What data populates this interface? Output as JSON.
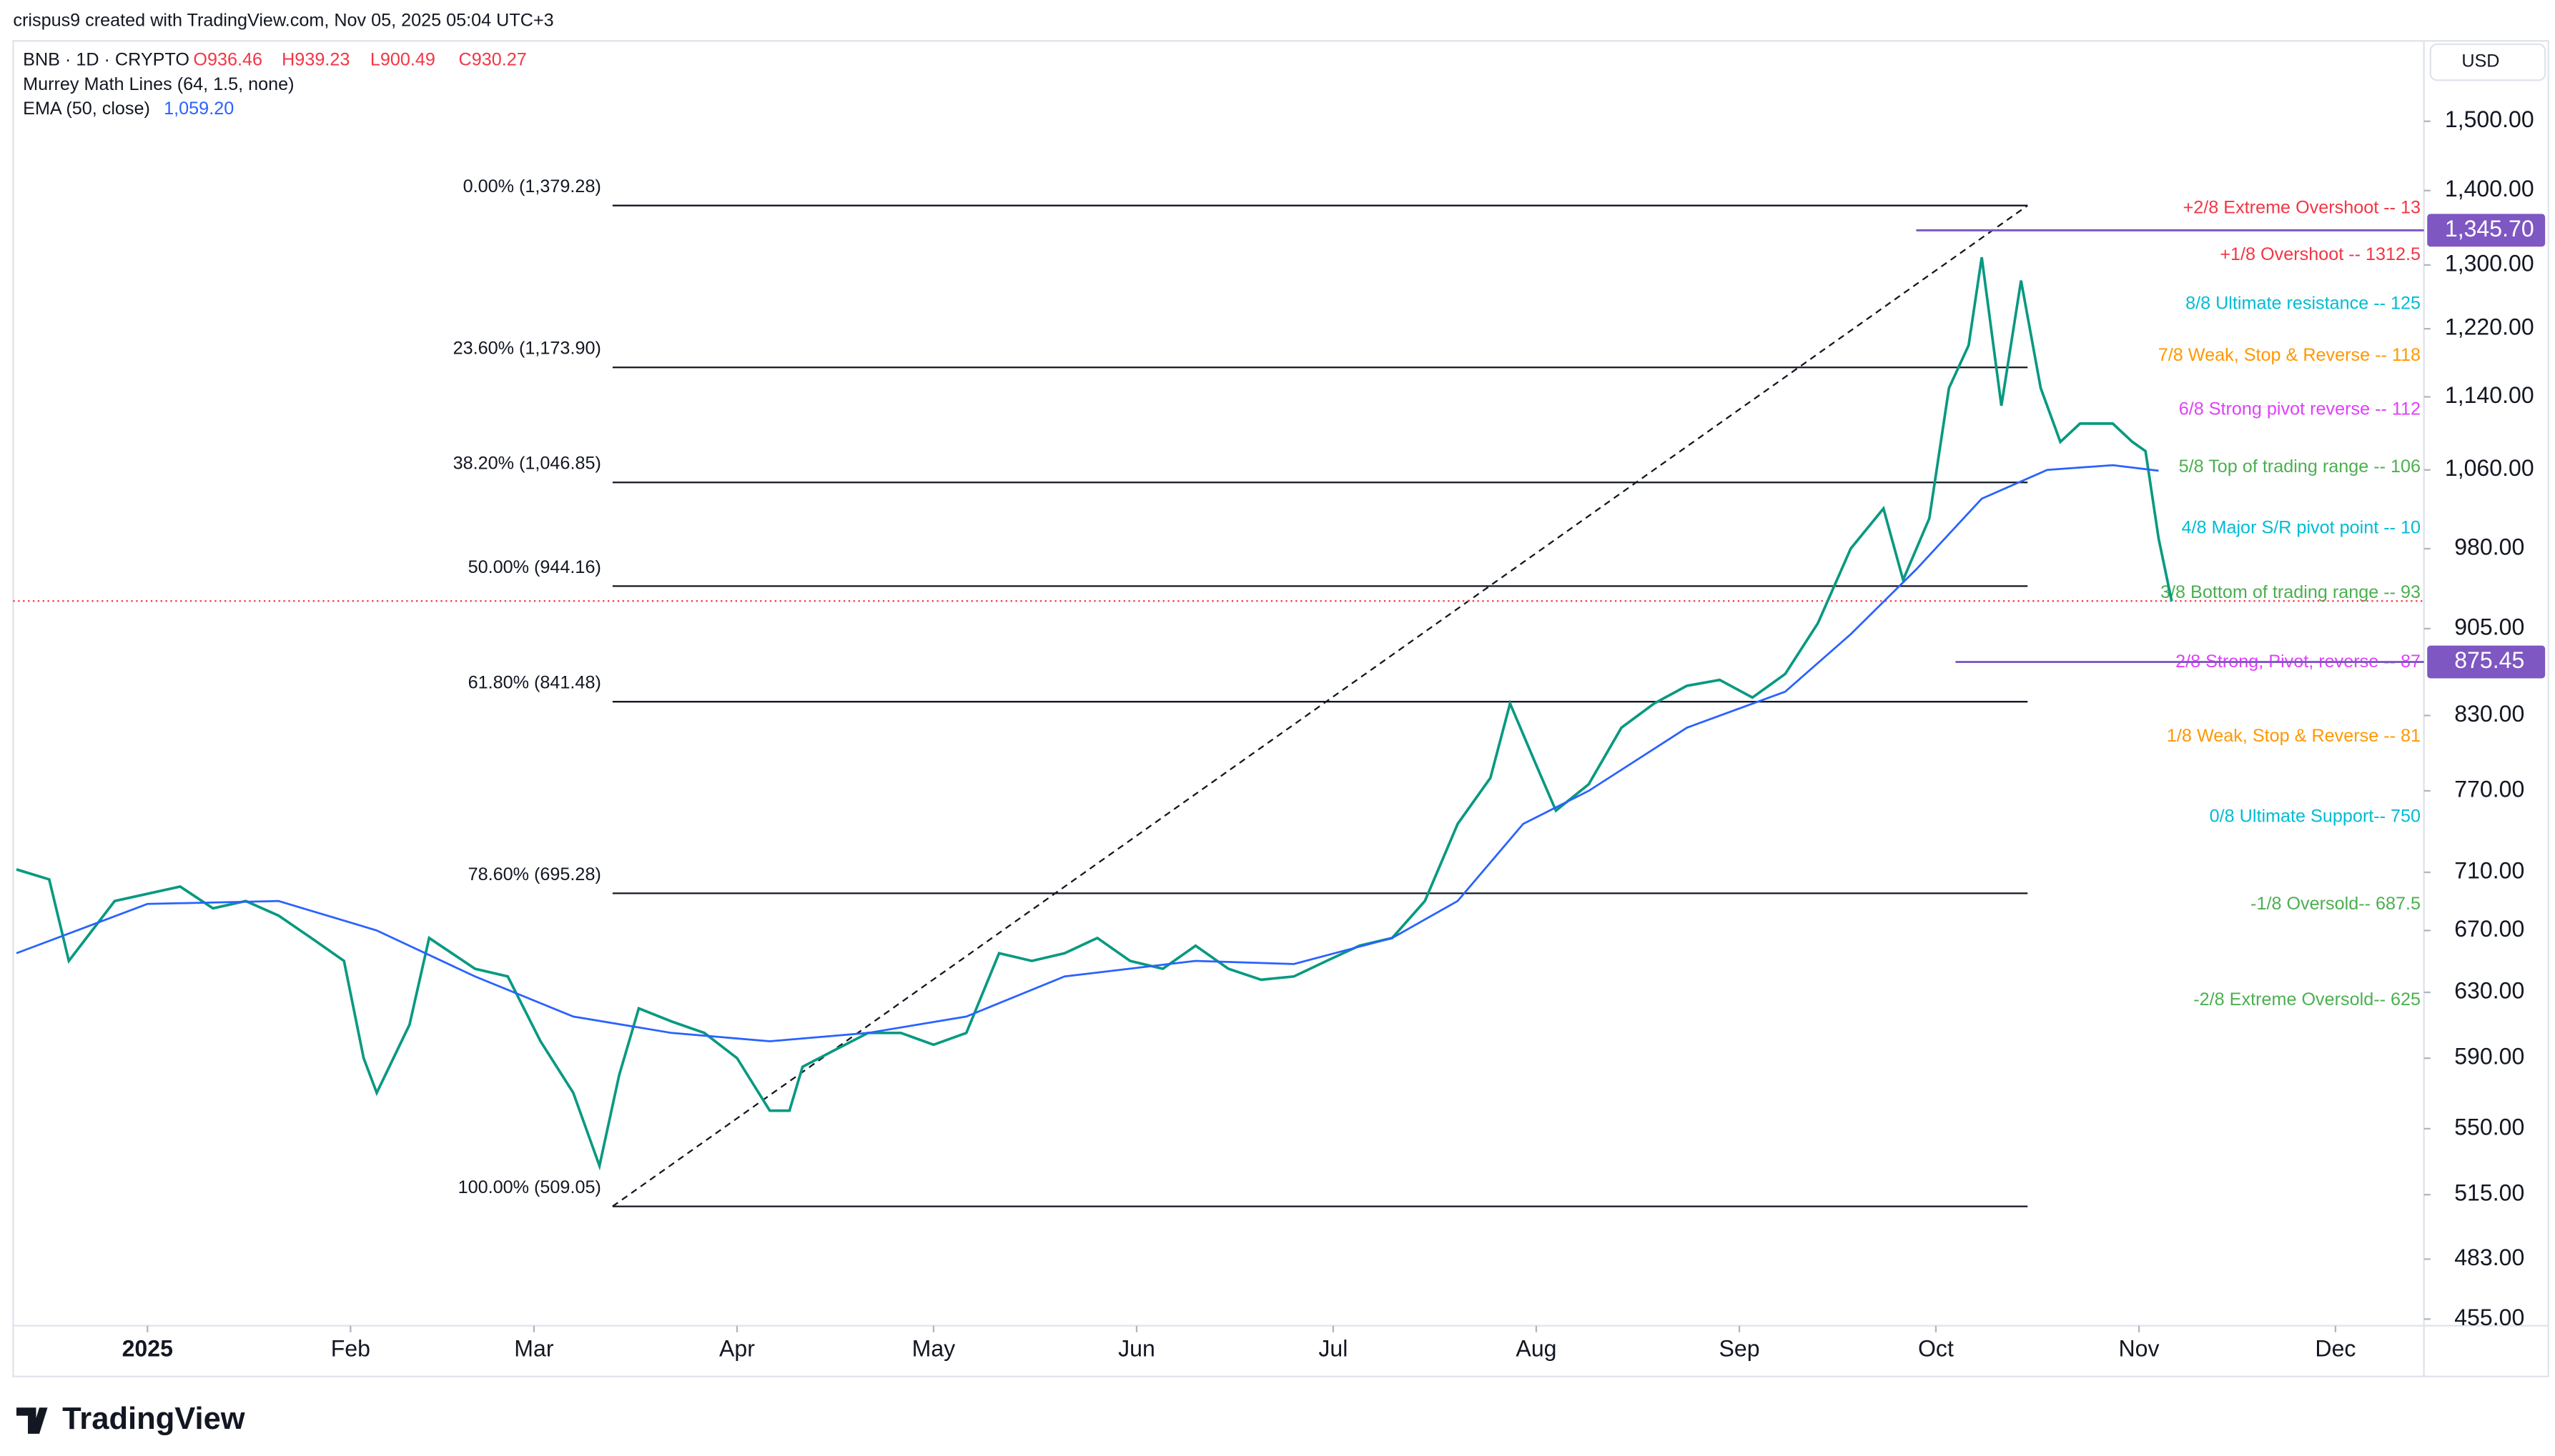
{
  "header": {
    "attribution": "crispus9 created with TradingView.com, Nov 05, 2025 05:04 UTC+3",
    "ohlc": [
      "O936.46",
      "H939.23",
      "L900.49",
      "C930.27"
    ],
    "indicator": "Murrey Math Lines (64, 1.5, none)",
    "ema_value": "1,059.20",
    "currency": "USD"
  },
  "footer": {
    "logo": "TradingView"
  },
  "chart_data": {
    "type": "line",
    "log_scale": true,
    "xlim": [
      -20.5,
      347.5
    ],
    "xticks": [
      {
        "value": 0,
        "label": "2025"
      },
      {
        "value": 31,
        "label": "Feb"
      },
      {
        "value": 59,
        "label": "Mar"
      },
      {
        "value": 90,
        "label": "Apr"
      },
      {
        "value": 120,
        "label": "May"
      },
      {
        "value": 151,
        "label": "Jun"
      },
      {
        "value": 181,
        "label": "Jul"
      },
      {
        "value": 212,
        "label": "Aug"
      },
      {
        "value": 243,
        "label": "Sep"
      },
      {
        "value": 273,
        "label": "Oct"
      },
      {
        "value": 304,
        "label": "Nov"
      },
      {
        "value": 334,
        "label": "Dec"
      }
    ],
    "ylim": [
      452,
      1625
    ],
    "yticks": [
      {
        "value": 1500,
        "label": "1,500.00"
      },
      {
        "value": 1400,
        "label": "1,400.00"
      },
      {
        "value": 1300,
        "label": "1,300.00"
      },
      {
        "value": 1220,
        "label": "1,220.00"
      },
      {
        "value": 1140,
        "label": "1,140.00"
      },
      {
        "value": 1060,
        "label": "1,060.00"
      },
      {
        "value": 980,
        "label": "980.00"
      },
      {
        "value": 905,
        "label": "905.00"
      },
      {
        "value": 830,
        "label": "830.00"
      },
      {
        "value": 770,
        "label": "770.00"
      },
      {
        "value": 710,
        "label": "710.00"
      },
      {
        "value": 670,
        "label": "670.00"
      },
      {
        "value": 630,
        "label": "630.00"
      },
      {
        "value": 590,
        "label": "590.00"
      },
      {
        "value": 550,
        "label": "550.00"
      },
      {
        "value": 515,
        "label": "515.00"
      },
      {
        "value": 483,
        "label": "483.00"
      },
      {
        "value": 455,
        "label": "455.00"
      }
    ],
    "series": [
      {
        "name": "BNB · 1D · CRYPTO",
        "color": "#089981",
        "x": [
          -20,
          -15,
          -12,
          -5,
          0,
          5,
          10,
          15,
          20,
          25,
          30,
          33,
          35,
          40,
          43,
          50,
          55,
          60,
          65,
          69,
          72,
          75,
          80,
          85,
          90,
          95,
          98,
          100,
          105,
          110,
          115,
          120,
          125,
          130,
          135,
          140,
          145,
          150,
          155,
          160,
          165,
          170,
          175,
          180,
          185,
          190,
          195,
          200,
          205,
          208,
          212,
          215,
          220,
          225,
          230,
          235,
          240,
          245,
          250,
          255,
          260,
          265,
          268,
          272,
          275,
          278,
          280,
          283,
          286,
          289,
          292,
          295,
          300,
          303,
          305,
          307,
          309
        ],
        "values": [
          712,
          705,
          650,
          690,
          695,
          700,
          685,
          690,
          680,
          665,
          650,
          590,
          570,
          610,
          665,
          645,
          640,
          600,
          570,
          530,
          580,
          620,
          612,
          605,
          590,
          560,
          560,
          585,
          595,
          605,
          605,
          598,
          605,
          655,
          650,
          655,
          665,
          650,
          645,
          660,
          645,
          638,
          640,
          650,
          660,
          665,
          690,
          745,
          780,
          840,
          790,
          755,
          775,
          820,
          840,
          855,
          860,
          845,
          865,
          910,
          980,
          1020,
          950,
          1010,
          1150,
          1200,
          1310,
          1130,
          1280,
          1150,
          1090,
          1110,
          1110,
          1090,
          1080,
          990,
          930
        ]
      },
      {
        "name": "EMA (50, close)",
        "color": "#2962ff",
        "x": [
          -20,
          0,
          20,
          35,
          50,
          65,
          80,
          95,
          110,
          125,
          140,
          160,
          175,
          190,
          200,
          210,
          220,
          235,
          250,
          260,
          270,
          280,
          290,
          300,
          307
        ],
        "values": [
          655,
          688,
          690,
          670,
          640,
          615,
          605,
          600,
          605,
          615,
          640,
          650,
          648,
          665,
          690,
          745,
          770,
          820,
          850,
          900,
          960,
          1030,
          1060,
          1065,
          1059.2
        ]
      }
    ],
    "last_price": 930.27,
    "fib_range_x": [
      71,
      287
    ],
    "fib_levels": [
      {
        "label": "0.00% (1,379.28)",
        "value": 1379.28
      },
      {
        "label": "23.60% (1,173.90)",
        "value": 1173.9
      },
      {
        "label": "38.20% (1,046.85)",
        "value": 1046.85
      },
      {
        "label": "50.00% (944.16)",
        "value": 944.16
      },
      {
        "label": "61.80% (841.48)",
        "value": 841.48
      },
      {
        "label": "78.60% (695.28)",
        "value": 695.28
      },
      {
        "label": "100.00% (509.05)",
        "value": 509.05
      }
    ],
    "murrey_lines": [
      {
        "label": "+2/8 Extreme Overshoot --  13",
        "value": 1375,
        "color": "#f23645"
      },
      {
        "label": "+1/8 Overshoot --  1312.5",
        "value": 1312.5,
        "color": "#f23645"
      },
      {
        "label": "8/8 Ultimate resistance --  125",
        "value": 1250,
        "color": "#00bcd4"
      },
      {
        "label": "7/8 Weak, Stop & Reverse --  118",
        "value": 1187.5,
        "color": "#ff9800"
      },
      {
        "label": "6/8 Strong pivot reverse --  112",
        "value": 1125,
        "color": "#e040fb"
      },
      {
        "label": "5/8 Top of trading range --  106",
        "value": 1062.5,
        "color": "#4caf50"
      },
      {
        "label": "4/8 Major S/R pivot point --  10",
        "value": 1000,
        "color": "#00bcd4"
      },
      {
        "label": "3/8 Bottom of trading range --  93",
        "value": 937.5,
        "color": "#4caf50"
      },
      {
        "label": "2/8 Strong, Pivot, reverse --  87",
        "value": 875,
        "color": "#e040fb"
      },
      {
        "label": "1/8 Weak, Stop & Reverse --  81",
        "value": 812.5,
        "color": "#ff9800"
      },
      {
        "label": "0/8 Ultimate Support--  750",
        "value": 750,
        "color": "#00bcd4"
      },
      {
        "label": "-1/8 Oversold--  687.5",
        "value": 687.5,
        "color": "#4caf50"
      },
      {
        "label": "-2/8 Extreme Oversold--  625",
        "value": 625,
        "color": "#4caf50"
      }
    ],
    "price_lines": [
      {
        "value": 1345.7,
        "label": "1,345.70",
        "from_x": 270,
        "color": "#7e57c2"
      },
      {
        "value": 875.45,
        "label": "875.45",
        "from_x": 276,
        "color": "#7e57c2"
      }
    ]
  }
}
